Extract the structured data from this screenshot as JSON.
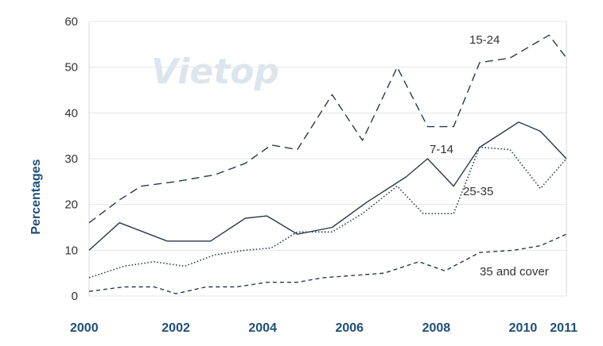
{
  "watermark": "Vietop",
  "chart_data": {
    "type": "line",
    "title": "",
    "xlabel": "",
    "ylabel": "Percentages",
    "ylim": [
      0,
      60
    ],
    "yticks": [
      0,
      10,
      20,
      30,
      40,
      50,
      60
    ],
    "xlim": [
      2000,
      2011
    ],
    "xticks": [
      "2000",
      "2002",
      "2004",
      "2006",
      "2008",
      "2010",
      "2011"
    ],
    "grid": "horizontal",
    "colors": {
      "lines": "#2b3a4a",
      "grid": "#e6e6e6",
      "axis_labels": "#1f4e79"
    },
    "series": [
      {
        "name": "15-24",
        "style": "dashed",
        "x": [
          2000,
          2000.7,
          2001.2,
          2002,
          2002.9,
          2003.6,
          2004.2,
          2004.8,
          2005.6,
          2006.3,
          2007.1,
          2007.8,
          2008.4,
          2009,
          2009.7,
          2010.6,
          2011
        ],
        "y": [
          16,
          21,
          24,
          25,
          26.5,
          29,
          33,
          32,
          44,
          34,
          50,
          37,
          37,
          51,
          52,
          57,
          52
        ]
      },
      {
        "name": "7-14",
        "style": "solid",
        "x": [
          2000,
          2000.7,
          2001.8,
          2002.8,
          2003.6,
          2004.1,
          2004.8,
          2005.6,
          2006.4,
          2007.3,
          2007.8,
          2008.4,
          2009,
          2009.9,
          2010.4,
          2011
        ],
        "y": [
          10,
          16,
          12,
          12,
          17,
          17.5,
          13.5,
          15,
          20.5,
          26,
          30,
          24,
          32.5,
          38,
          36,
          30
        ]
      },
      {
        "name": "25-35",
        "style": "dotted",
        "x": [
          2000,
          2000.8,
          2001.5,
          2002.2,
          2002.9,
          2003.6,
          2004.2,
          2004.8,
          2005.6,
          2006.3,
          2007.1,
          2007.7,
          2008.4,
          2009,
          2009.7,
          2010.4,
          2011
        ],
        "y": [
          4,
          6.5,
          7.5,
          6.5,
          9,
          10,
          10.5,
          14,
          14,
          18,
          24,
          18,
          18,
          32.5,
          32,
          23.5,
          30
        ]
      },
      {
        "name": "35 and cover",
        "style": "short-dashed",
        "x": [
          2000,
          2000.8,
          2001.5,
          2002,
          2002.7,
          2003.4,
          2004.1,
          2004.8,
          2005.4,
          2006.1,
          2006.8,
          2007.6,
          2008.2,
          2009,
          2009.8,
          2010.4,
          2011
        ],
        "y": [
          1,
          2,
          2,
          0.5,
          2,
          2,
          3,
          3,
          4,
          4.5,
          5,
          7.5,
          5.5,
          9.5,
          10,
          11,
          13.5
        ]
      }
    ]
  }
}
